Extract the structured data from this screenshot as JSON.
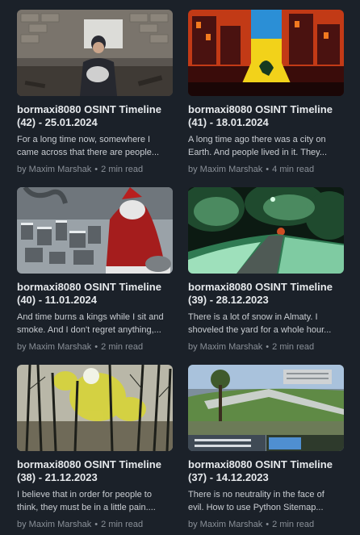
{
  "articles": [
    {
      "title_line1": "bormaxi8080 OSINT Timeline",
      "title_line2": "(42) - 25.01.2024",
      "excerpt_line1": "For a long time now, somewhere I",
      "excerpt_line2": "came across that there are people...",
      "author": "by Maxim Marshak",
      "read_time": "2 min read",
      "thumb_icon": "child-in-ruins-image"
    },
    {
      "title_line1": "bormaxi8080 OSINT Timeline",
      "title_line2": "(41) - 18.01.2024",
      "excerpt_line1": "A long time ago there was a city on",
      "excerpt_line2": "Earth. And people lived in it. They...",
      "author": "by Maxim Marshak",
      "read_time": "4 min read",
      "thumb_icon": "burning-city-poster-image"
    },
    {
      "title_line1": "bormaxi8080 OSINT Timeline",
      "title_line2": "(40) - 11.01.2024",
      "excerpt_line1": "And time burns a kings while I sit and",
      "excerpt_line2": "smoke. And I don't regret anything,...",
      "author": "by Maxim Marshak",
      "read_time": "2 min read",
      "thumb_icon": "santa-over-ruined-city-image"
    },
    {
      "title_line1": "bormaxi8080 OSINT Timeline",
      "title_line2": "(39) - 28.12.2023",
      "excerpt_line1": "There is a lot of snow in Almaty. I",
      "excerpt_line2": "shoveled the yard for a whole hour...",
      "author": "by Maxim Marshak",
      "read_time": "2 min read",
      "thumb_icon": "snowy-night-yard-image"
    },
    {
      "title_line1": "bormaxi8080 OSINT Timeline",
      "title_line2": "(38) - 21.12.2023",
      "excerpt_line1": "I believe that in order for people to",
      "excerpt_line2": "think, they must be in a little pain....",
      "author": "by Maxim Marshak",
      "read_time": "2 min read",
      "thumb_icon": "yellow-forest-image"
    },
    {
      "title_line1": "bormaxi8080 OSINT Timeline",
      "title_line2": "(37) - 14.12.2023",
      "excerpt_line1": "There is no neutrality in the face of",
      "excerpt_line2": "evil. How to use Python Sitemap...",
      "author": "by Maxim Marshak",
      "read_time": "2 min read",
      "thumb_icon": "city-park-collage-image"
    }
  ],
  "separator": "•",
  "colors": {
    "background": "#1b2129",
    "title": "#e6e9ec",
    "excerpt": "#c9cdd2",
    "meta": "#8a9098"
  }
}
